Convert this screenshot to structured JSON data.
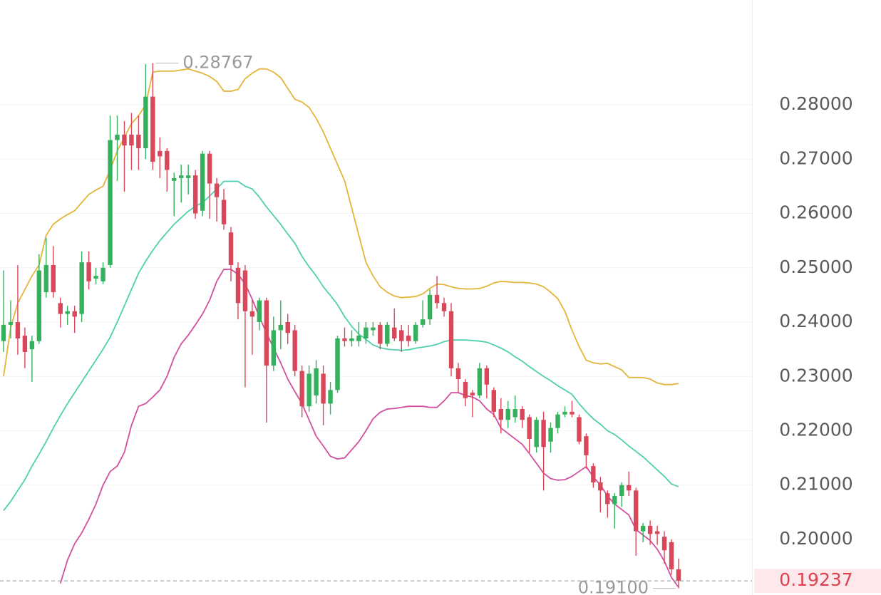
{
  "chart_data": {
    "type": "candlestick",
    "open": [
      0.2365,
      0.2395,
      0.24,
      0.2375,
      0.235,
      0.2365,
      0.2455,
      0.2505,
      0.2435,
      0.2415,
      0.242,
      0.2415,
      0.251,
      0.248,
      0.2475,
      0.2505,
      0.2735,
      0.2745,
      0.2745,
      0.2745,
      0.272,
      0.2815,
      0.2715,
      0.2715,
      0.266,
      0.2665,
      0.2665,
      0.267,
      0.2605,
      0.271,
      0.2655,
      0.2625,
      0.2565,
      0.25,
      0.2495,
      0.242,
      0.24,
      0.244,
      0.232,
      0.2385,
      0.24,
      0.2385,
      0.231,
      0.2245,
      0.2265,
      0.2305,
      0.225,
      0.2275,
      0.237,
      0.2365,
      0.2365,
      0.237,
      0.2385,
      0.2395,
      0.236,
      0.239,
      0.2385,
      0.2375,
      0.2365,
      0.2395,
      0.2405,
      0.245,
      0.2435,
      0.242,
      0.2315,
      0.229,
      0.227,
      0.2265,
      0.2315,
      0.2275,
      0.224,
      0.222,
      0.2225,
      0.224,
      0.2225,
      0.217,
      0.222,
      0.218,
      0.2205,
      0.223,
      0.2235,
      0.2225,
      0.219,
      0.2135,
      0.2105,
      0.2085,
      0.2065,
      0.208,
      0.21,
      0.209,
      0.2015,
      0.2025,
      0.2015,
      0.2005,
      0.1995,
      0.1945
    ],
    "high": [
      0.2495,
      0.244,
      0.2505,
      0.239,
      0.2375,
      0.2525,
      0.2555,
      0.254,
      0.2445,
      0.243,
      0.243,
      0.253,
      0.253,
      0.25,
      0.251,
      0.278,
      0.278,
      0.277,
      0.2785,
      0.278,
      0.2875,
      0.28767,
      0.274,
      0.272,
      0.2675,
      0.269,
      0.269,
      0.268,
      0.2715,
      0.2715,
      0.2665,
      0.2645,
      0.2575,
      0.251,
      0.2505,
      0.244,
      0.2445,
      0.2445,
      0.241,
      0.244,
      0.2415,
      0.2395,
      0.232,
      0.232,
      0.233,
      0.232,
      0.229,
      0.2375,
      0.239,
      0.2385,
      0.24,
      0.24,
      0.24,
      0.24,
      0.24,
      0.2425,
      0.2395,
      0.2395,
      0.24,
      0.244,
      0.246,
      0.2485,
      0.2445,
      0.2435,
      0.2325,
      0.2295,
      0.2275,
      0.2325,
      0.232,
      0.228,
      0.226,
      0.2255,
      0.2265,
      0.2245,
      0.223,
      0.2225,
      0.2235,
      0.2215,
      0.2235,
      0.2245,
      0.2255,
      0.223,
      0.2195,
      0.214,
      0.2115,
      0.209,
      0.2085,
      0.2105,
      0.2125,
      0.2095,
      0.203,
      0.2035,
      0.2025,
      0.2015,
      0.2,
      0.1965
    ],
    "low": [
      0.2345,
      0.237,
      0.234,
      0.2315,
      0.229,
      0.236,
      0.2445,
      0.2445,
      0.239,
      0.2395,
      0.238,
      0.24,
      0.246,
      0.247,
      0.247,
      0.25,
      0.266,
      0.264,
      0.268,
      0.268,
      0.27,
      0.268,
      0.2665,
      0.264,
      0.2595,
      0.262,
      0.2635,
      0.259,
      0.2595,
      0.259,
      0.2585,
      0.257,
      0.2475,
      0.2405,
      0.228,
      0.234,
      0.2385,
      0.2215,
      0.231,
      0.235,
      0.236,
      0.23,
      0.2225,
      0.2235,
      0.225,
      0.221,
      0.223,
      0.227,
      0.2355,
      0.2355,
      0.2355,
      0.236,
      0.2375,
      0.235,
      0.2355,
      0.2365,
      0.2345,
      0.2355,
      0.236,
      0.239,
      0.2395,
      0.2425,
      0.241,
      0.23,
      0.227,
      0.2245,
      0.2225,
      0.226,
      0.226,
      0.2225,
      0.2195,
      0.2205,
      0.2215,
      0.2205,
      0.216,
      0.216,
      0.209,
      0.216,
      0.2195,
      0.2225,
      0.2225,
      0.2175,
      0.213,
      0.2095,
      0.205,
      0.204,
      0.202,
      0.206,
      0.208,
      0.197,
      0.1995,
      0.199,
      0.199,
      0.1955,
      0.1935,
      0.191
    ],
    "close": [
      0.2395,
      0.24,
      0.237,
      0.2345,
      0.2365,
      0.2495,
      0.2505,
      0.2455,
      0.2415,
      0.242,
      0.241,
      0.251,
      0.2475,
      0.2485,
      0.25,
      0.2735,
      0.2745,
      0.2725,
      0.2725,
      0.272,
      0.2815,
      0.2695,
      0.2705,
      0.268,
      0.2665,
      0.267,
      0.267,
      0.26,
      0.271,
      0.2655,
      0.263,
      0.258,
      0.2505,
      0.2435,
      0.242,
      0.241,
      0.244,
      0.232,
      0.2385,
      0.2395,
      0.238,
      0.231,
      0.2245,
      0.2305,
      0.2315,
      0.225,
      0.2275,
      0.237,
      0.2365,
      0.237,
      0.2375,
      0.239,
      0.239,
      0.236,
      0.2395,
      0.237,
      0.2365,
      0.2365,
      0.2395,
      0.2405,
      0.245,
      0.2435,
      0.242,
      0.2315,
      0.2295,
      0.226,
      0.2265,
      0.2315,
      0.2285,
      0.2235,
      0.222,
      0.224,
      0.224,
      0.222,
      0.2185,
      0.222,
      0.217,
      0.2205,
      0.223,
      0.2235,
      0.223,
      0.218,
      0.2155,
      0.2105,
      0.209,
      0.2065,
      0.208,
      0.21,
      0.209,
      0.2015,
      0.2025,
      0.201,
      0.201,
      0.198,
      0.1945,
      0.19237
    ],
    "up_color": "#35b05c",
    "down_color": "#d9475a",
    "bands": [
      {
        "color": "#e3b53a",
        "values": [
          0.23,
          0.239,
          0.2435,
          0.246,
          0.2485,
          0.2505,
          0.256,
          0.258,
          0.259,
          0.2598,
          0.2605,
          0.262,
          0.2635,
          0.2643,
          0.265,
          0.268,
          0.2715,
          0.274,
          0.2765,
          0.278,
          0.28,
          0.286,
          0.2862,
          0.2862,
          0.2862,
          0.2864,
          0.2866,
          0.2862,
          0.2858,
          0.2852,
          0.2843,
          0.2825,
          0.2825,
          0.2828,
          0.2848,
          0.2858,
          0.2866,
          0.2866,
          0.286,
          0.285,
          0.283,
          0.281,
          0.2805,
          0.2795,
          0.2775,
          0.275,
          0.272,
          0.269,
          0.266,
          0.261,
          0.256,
          0.251,
          0.2485,
          0.2465,
          0.2455,
          0.2448,
          0.2445,
          0.2446,
          0.2447,
          0.2452,
          0.2462,
          0.247,
          0.2469,
          0.2465,
          0.2462,
          0.2461,
          0.2461,
          0.2462,
          0.2466,
          0.2472,
          0.2475,
          0.2474,
          0.2473,
          0.2473,
          0.2472,
          0.247,
          0.2465,
          0.2455,
          0.2443,
          0.242,
          0.2385,
          0.2355,
          0.233,
          0.2325,
          0.2323,
          0.2324,
          0.2318,
          0.2312,
          0.2298,
          0.2298,
          0.2298,
          0.2295,
          0.2288,
          0.2285,
          0.2285,
          0.2287
        ]
      },
      {
        "color": "#4fcfae",
        "values": [
          0.2053,
          0.207,
          0.209,
          0.211,
          0.2135,
          0.2157,
          0.218,
          0.2205,
          0.2228,
          0.225,
          0.227,
          0.229,
          0.231,
          0.233,
          0.235,
          0.2372,
          0.24,
          0.243,
          0.246,
          0.249,
          0.2512,
          0.2532,
          0.255,
          0.2565,
          0.258,
          0.2592,
          0.2604,
          0.2613,
          0.262,
          0.2632,
          0.2645,
          0.2659,
          0.2659,
          0.2659,
          0.265,
          0.2645,
          0.263,
          0.2612,
          0.2596,
          0.258,
          0.2562,
          0.2545,
          0.2521,
          0.2502,
          0.2485,
          0.2465,
          0.2449,
          0.2432,
          0.241,
          0.2392,
          0.2378,
          0.2368,
          0.2358,
          0.2353,
          0.235,
          0.2349,
          0.2348,
          0.2349,
          0.2352,
          0.2354,
          0.2356,
          0.2359,
          0.2364,
          0.2367,
          0.2367,
          0.2367,
          0.2366,
          0.2365,
          0.2363,
          0.2358,
          0.2352,
          0.2345,
          0.2336,
          0.2328,
          0.2318,
          0.2309,
          0.23,
          0.2292,
          0.2283,
          0.2275,
          0.2267,
          0.225,
          0.2235,
          0.2222,
          0.2212,
          0.22,
          0.2193,
          0.2183,
          0.2172,
          0.2162,
          0.2152,
          0.214,
          0.2128,
          0.2116,
          0.2102,
          0.2097
        ]
      },
      {
        "color": "#d24f9f",
        "values": [
          null,
          null,
          null,
          null,
          null,
          null,
          null,
          null,
          0.1919,
          0.1962,
          0.1992,
          0.2012,
          0.2037,
          0.2065,
          0.21,
          0.2125,
          0.2135,
          0.216,
          0.221,
          0.2245,
          0.225,
          0.2262,
          0.2275,
          0.23,
          0.2335,
          0.236,
          0.2376,
          0.2395,
          0.2415,
          0.244,
          0.2475,
          0.2497,
          0.2497,
          0.2488,
          0.247,
          0.2442,
          0.241,
          0.238,
          0.2352,
          0.2325,
          0.2295,
          0.2272,
          0.225,
          0.222,
          0.219,
          0.2172,
          0.2153,
          0.2148,
          0.215,
          0.2165,
          0.218,
          0.22,
          0.2222,
          0.2234,
          0.224,
          0.2241,
          0.2243,
          0.2245,
          0.2245,
          0.2245,
          0.2243,
          0.2243,
          0.2255,
          0.227,
          0.227,
          0.2265,
          0.2262,
          0.2255,
          0.224,
          0.223,
          0.2205,
          0.2195,
          0.2185,
          0.2175,
          0.2158,
          0.214,
          0.2122,
          0.2112,
          0.2109,
          0.211,
          0.2116,
          0.2125,
          0.2134,
          0.2115,
          0.21,
          0.208,
          0.2065,
          0.2055,
          0.2045,
          0.2018,
          0.2008,
          0.1998,
          0.1982,
          0.196,
          0.193,
          0.1912
        ]
      }
    ],
    "ylim": [
      0.18977,
      0.29928
    ],
    "yticks": [
      {
        "value": 0.2,
        "label": "0.20000"
      },
      {
        "value": 0.21,
        "label": "0.21000"
      },
      {
        "value": 0.22,
        "label": "0.22000"
      },
      {
        "value": 0.23,
        "label": "0.23000"
      },
      {
        "value": 0.24,
        "label": "0.24000"
      },
      {
        "value": 0.25,
        "label": "0.25000"
      },
      {
        "value": 0.26,
        "label": "0.26000"
      },
      {
        "value": 0.27,
        "label": "0.27000"
      },
      {
        "value": 0.28,
        "label": "0.28000"
      }
    ],
    "grid": true,
    "max_label": 0.28767,
    "min_label": {
      "value": 0.191,
      "label": "0.19100"
    },
    "last_price": 0.19237
  }
}
